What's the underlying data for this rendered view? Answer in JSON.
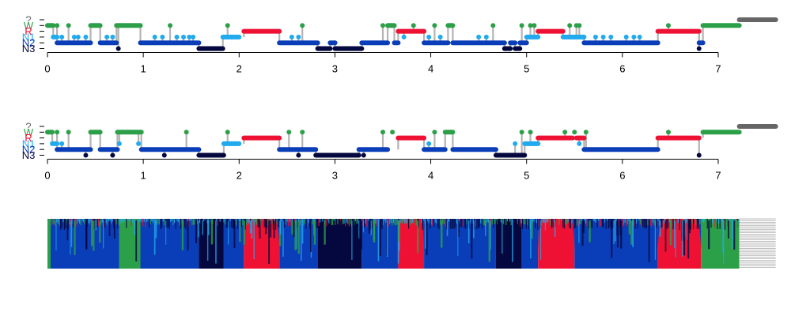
{
  "colors": {
    "W": "#2ca048",
    "R": "#ee1133",
    "N1": "#22aaee",
    "N2": "#0a3eb8",
    "N3": "#05083f",
    "?": "#666666",
    "connector": "#b4b4b4"
  },
  "chart_data": [
    {
      "type": "line",
      "panel": "hypnogram-1",
      "stages": [
        "?",
        "W",
        "R",
        "N1",
        "N2",
        "N3"
      ],
      "xlim": [
        0,
        7.6
      ],
      "x_ticks": [
        0,
        1,
        2,
        3,
        4,
        5,
        6,
        7
      ],
      "segments": [
        {
          "stage": "W",
          "x0": 0.0,
          "x1": 0.06
        },
        {
          "stage": "N1",
          "x0": 0.06,
          "x1": 0.1
        },
        {
          "stage": "N2",
          "x0": 0.1,
          "x1": 0.45
        },
        {
          "stage": "W",
          "x0": 0.45,
          "x1": 0.55
        },
        {
          "stage": "N2",
          "x0": 0.55,
          "x1": 0.72
        },
        {
          "stage": "W",
          "x0": 0.72,
          "x1": 0.97
        },
        {
          "stage": "N2",
          "x0": 0.97,
          "x1": 1.58
        },
        {
          "stage": "N3",
          "x0": 1.58,
          "x1": 1.83
        },
        {
          "stage": "N1",
          "x0": 1.83,
          "x1": 2.0
        },
        {
          "stage": "R",
          "x0": 2.05,
          "x1": 2.42
        },
        {
          "stage": "N2",
          "x0": 2.42,
          "x1": 2.82
        },
        {
          "stage": "N3",
          "x0": 2.82,
          "x1": 2.95
        },
        {
          "stage": "N2",
          "x0": 2.95,
          "x1": 3.0
        },
        {
          "stage": "N3",
          "x0": 3.0,
          "x1": 3.28
        },
        {
          "stage": "N2",
          "x0": 3.28,
          "x1": 3.55
        },
        {
          "stage": "W",
          "x0": 3.55,
          "x1": 3.62
        },
        {
          "stage": "N2",
          "x0": 3.62,
          "x1": 3.66
        },
        {
          "stage": "R",
          "x0": 3.66,
          "x1": 3.93
        },
        {
          "stage": "N2",
          "x0": 3.93,
          "x1": 4.18
        },
        {
          "stage": "W",
          "x0": 4.18,
          "x1": 4.23
        },
        {
          "stage": "N2",
          "x0": 4.23,
          "x1": 4.77
        },
        {
          "stage": "N3",
          "x0": 4.77,
          "x1": 4.83
        },
        {
          "stage": "N2",
          "x0": 4.83,
          "x1": 4.88
        },
        {
          "stage": "N3",
          "x0": 4.88,
          "x1": 4.93
        },
        {
          "stage": "N2",
          "x0": 4.93,
          "x1": 5.0
        },
        {
          "stage": "N1",
          "x0": 5.0,
          "x1": 5.12
        },
        {
          "stage": "R",
          "x0": 5.12,
          "x1": 5.38
        },
        {
          "stage": "N1",
          "x0": 5.38,
          "x1": 5.6
        },
        {
          "stage": "N2",
          "x0": 5.6,
          "x1": 6.37
        },
        {
          "stage": "R",
          "x0": 6.37,
          "x1": 6.8
        },
        {
          "stage": "N2",
          "x0": 6.8,
          "x1": 6.84
        },
        {
          "stage": "W",
          "x0": 6.84,
          "x1": 7.22
        },
        {
          "stage": "?",
          "x0": 7.22,
          "x1": 7.6
        }
      ],
      "spikes": [
        {
          "x": 0.1,
          "stage": "W"
        },
        {
          "x": 0.15,
          "stage": "N1"
        },
        {
          "x": 0.22,
          "stage": "W"
        },
        {
          "x": 0.28,
          "stage": "N1"
        },
        {
          "x": 0.32,
          "stage": "N1"
        },
        {
          "x": 0.4,
          "stage": "N1"
        },
        {
          "x": 0.62,
          "stage": "N1"
        },
        {
          "x": 0.68,
          "stage": "N1"
        },
        {
          "x": 0.74,
          "stage": "N3"
        },
        {
          "x": 1.12,
          "stage": "N1"
        },
        {
          "x": 1.2,
          "stage": "N1"
        },
        {
          "x": 1.28,
          "stage": "W"
        },
        {
          "x": 1.35,
          "stage": "N1"
        },
        {
          "x": 1.42,
          "stage": "N1"
        },
        {
          "x": 1.48,
          "stage": "N1"
        },
        {
          "x": 1.52,
          "stage": "N1"
        },
        {
          "x": 1.88,
          "stage": "W"
        },
        {
          "x": 1.92,
          "stage": "N1"
        },
        {
          "x": 2.55,
          "stage": "N1"
        },
        {
          "x": 2.62,
          "stage": "N1"
        },
        {
          "x": 2.66,
          "stage": "W"
        },
        {
          "x": 3.0,
          "stage": "N2"
        },
        {
          "x": 3.5,
          "stage": "W"
        },
        {
          "x": 3.72,
          "stage": "N1"
        },
        {
          "x": 3.82,
          "stage": "W"
        },
        {
          "x": 3.98,
          "stage": "N1"
        },
        {
          "x": 4.04,
          "stage": "W"
        },
        {
          "x": 4.1,
          "stage": "N1"
        },
        {
          "x": 4.5,
          "stage": "N1"
        },
        {
          "x": 4.58,
          "stage": "N1"
        },
        {
          "x": 4.65,
          "stage": "W"
        },
        {
          "x": 4.95,
          "stage": "W"
        },
        {
          "x": 5.04,
          "stage": "W"
        },
        {
          "x": 5.08,
          "stage": "W"
        },
        {
          "x": 5.45,
          "stage": "W"
        },
        {
          "x": 5.52,
          "stage": "W"
        },
        {
          "x": 5.55,
          "stage": "W"
        },
        {
          "x": 5.72,
          "stage": "N1"
        },
        {
          "x": 5.8,
          "stage": "N1"
        },
        {
          "x": 5.88,
          "stage": "N1"
        },
        {
          "x": 6.04,
          "stage": "N1"
        },
        {
          "x": 6.12,
          "stage": "N1"
        },
        {
          "x": 6.18,
          "stage": "N1"
        },
        {
          "x": 6.48,
          "stage": "W"
        },
        {
          "x": 6.8,
          "stage": "N3"
        }
      ]
    },
    {
      "type": "line",
      "panel": "hypnogram-2",
      "stages": [
        "?",
        "W",
        "R",
        "N1",
        "N2",
        "N3"
      ],
      "xlim": [
        0,
        7.6
      ],
      "x_ticks": [
        0,
        1,
        2,
        3,
        4,
        5,
        6,
        7
      ],
      "segments": [
        {
          "stage": "W",
          "x0": 0.0,
          "x1": 0.05
        },
        {
          "stage": "N1",
          "x0": 0.05,
          "x1": 0.1
        },
        {
          "stage": "N2",
          "x0": 0.1,
          "x1": 0.45
        },
        {
          "stage": "W",
          "x0": 0.45,
          "x1": 0.55
        },
        {
          "stage": "N2",
          "x0": 0.55,
          "x1": 0.73
        },
        {
          "stage": "W",
          "x0": 0.73,
          "x1": 0.98
        },
        {
          "stage": "N2",
          "x0": 0.98,
          "x1": 1.58
        },
        {
          "stage": "N3",
          "x0": 1.58,
          "x1": 1.84
        },
        {
          "stage": "N1",
          "x0": 1.84,
          "x1": 2.0
        },
        {
          "stage": "R",
          "x0": 2.05,
          "x1": 2.42
        },
        {
          "stage": "N2",
          "x0": 2.42,
          "x1": 2.8
        },
        {
          "stage": "N3",
          "x0": 2.8,
          "x1": 3.25
        },
        {
          "stage": "N2",
          "x0": 3.25,
          "x1": 3.55
        },
        {
          "stage": "R",
          "x0": 3.66,
          "x1": 3.93
        },
        {
          "stage": "N2",
          "x0": 3.93,
          "x1": 4.15
        },
        {
          "stage": "W",
          "x0": 4.15,
          "x1": 4.23
        },
        {
          "stage": "N2",
          "x0": 4.23,
          "x1": 4.68
        },
        {
          "stage": "N3",
          "x0": 4.68,
          "x1": 4.98
        },
        {
          "stage": "N1",
          "x0": 4.98,
          "x1": 5.12
        },
        {
          "stage": "R",
          "x0": 5.12,
          "x1": 5.48
        },
        {
          "stage": "R",
          "x0": 5.52,
          "x1": 5.6
        },
        {
          "stage": "N2",
          "x0": 5.6,
          "x1": 6.37
        },
        {
          "stage": "R",
          "x0": 6.37,
          "x1": 6.8
        },
        {
          "stage": "W",
          "x0": 6.84,
          "x1": 7.22
        },
        {
          "stage": "?",
          "x0": 7.22,
          "x1": 7.6
        }
      ],
      "spikes": [
        {
          "x": 0.1,
          "stage": "W"
        },
        {
          "x": 0.15,
          "stage": "N1"
        },
        {
          "x": 0.22,
          "stage": "W"
        },
        {
          "x": 0.4,
          "stage": "N3"
        },
        {
          "x": 0.68,
          "stage": "N3"
        },
        {
          "x": 0.75,
          "stage": "N1"
        },
        {
          "x": 0.95,
          "stage": "N1"
        },
        {
          "x": 1.22,
          "stage": "N3"
        },
        {
          "x": 1.45,
          "stage": "W"
        },
        {
          "x": 1.88,
          "stage": "W"
        },
        {
          "x": 2.52,
          "stage": "W"
        },
        {
          "x": 2.62,
          "stage": "N3"
        },
        {
          "x": 2.66,
          "stage": "W"
        },
        {
          "x": 3.3,
          "stage": "N3"
        },
        {
          "x": 3.5,
          "stage": "W"
        },
        {
          "x": 3.6,
          "stage": "W"
        },
        {
          "x": 3.98,
          "stage": "N1"
        },
        {
          "x": 4.04,
          "stage": "W"
        },
        {
          "x": 4.78,
          "stage": "N3"
        },
        {
          "x": 4.88,
          "stage": "N1"
        },
        {
          "x": 4.95,
          "stage": "W"
        },
        {
          "x": 5.04,
          "stage": "W"
        },
        {
          "x": 5.08,
          "stage": "N1"
        },
        {
          "x": 5.4,
          "stage": "W"
        },
        {
          "x": 5.5,
          "stage": "W"
        },
        {
          "x": 5.55,
          "stage": "N1"
        },
        {
          "x": 5.62,
          "stage": "W"
        },
        {
          "x": 6.48,
          "stage": "W"
        },
        {
          "x": 6.8,
          "stage": "N3"
        }
      ]
    },
    {
      "type": "area",
      "panel": "stage-probability",
      "stages": [
        "N3",
        "N2",
        "N1",
        "R",
        "W"
      ],
      "xlim": [
        0,
        7.6
      ],
      "dominant": [
        {
          "stage": "N2",
          "x0": 0.0,
          "x1": 0.75
        },
        {
          "stage": "W",
          "x0": 0.75,
          "x1": 0.97
        },
        {
          "stage": "N2",
          "x0": 0.97,
          "x1": 1.58
        },
        {
          "stage": "N3",
          "x0": 1.58,
          "x1": 1.84
        },
        {
          "stage": "N2",
          "x0": 1.84,
          "x1": 2.05
        },
        {
          "stage": "R",
          "x0": 2.05,
          "x1": 2.42
        },
        {
          "stage": "N2",
          "x0": 2.42,
          "x1": 2.82
        },
        {
          "stage": "N3",
          "x0": 2.82,
          "x1": 3.28
        },
        {
          "stage": "N2",
          "x0": 3.28,
          "x1": 3.66
        },
        {
          "stage": "R",
          "x0": 3.66,
          "x1": 3.93
        },
        {
          "stage": "N2",
          "x0": 3.93,
          "x1": 4.68
        },
        {
          "stage": "N3",
          "x0": 4.68,
          "x1": 4.95
        },
        {
          "stage": "N2",
          "x0": 4.95,
          "x1": 5.12
        },
        {
          "stage": "R",
          "x0": 5.12,
          "x1": 5.5
        },
        {
          "stage": "N2",
          "x0": 5.5,
          "x1": 6.37
        },
        {
          "stage": "R",
          "x0": 6.37,
          "x1": 6.82
        },
        {
          "stage": "W",
          "x0": 6.82,
          "x1": 7.22
        },
        {
          "stage": "?",
          "x0": 7.22,
          "x1": 7.6
        }
      ]
    }
  ]
}
